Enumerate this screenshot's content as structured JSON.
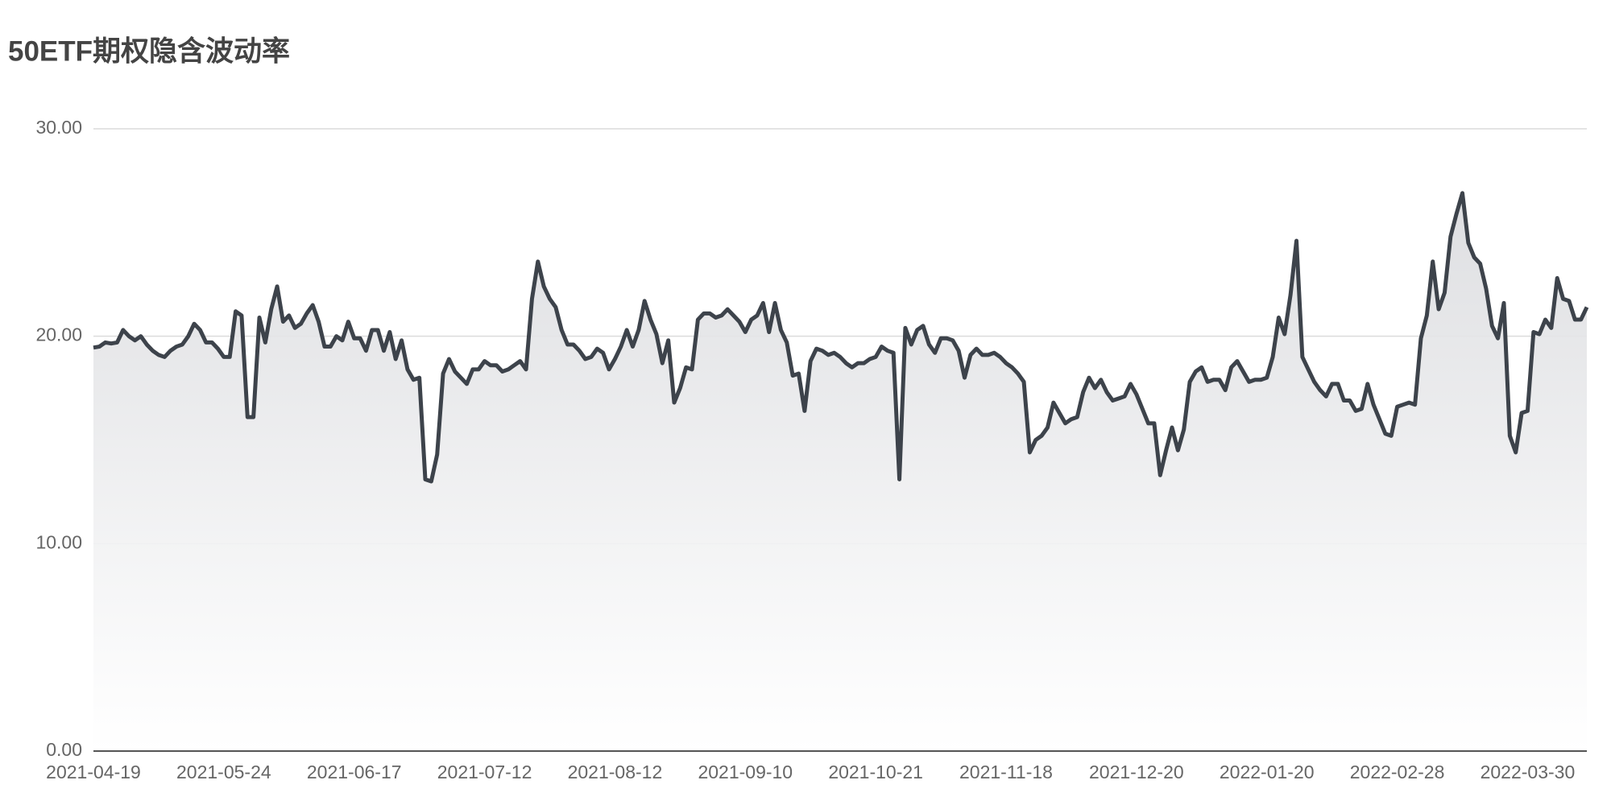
{
  "chart_data": {
    "type": "line",
    "title": "50ETF期权隐含波动率",
    "categories": [
      "2021-04-19",
      null,
      null,
      null,
      null,
      null,
      null,
      null,
      null,
      null,
      null,
      null,
      null,
      null,
      null,
      null,
      null,
      null,
      null,
      null,
      null,
      null,
      "2021-05-24",
      null,
      null,
      null,
      null,
      null,
      null,
      null,
      null,
      null,
      null,
      null,
      null,
      null,
      null,
      null,
      null,
      null,
      null,
      null,
      null,
      null,
      "2021-06-17",
      null,
      null,
      null,
      null,
      null,
      null,
      null,
      null,
      null,
      null,
      null,
      null,
      null,
      null,
      null,
      null,
      null,
      null,
      null,
      null,
      null,
      "2021-07-12",
      null,
      null,
      null,
      null,
      null,
      null,
      null,
      null,
      null,
      null,
      null,
      null,
      null,
      null,
      null,
      null,
      null,
      null,
      null,
      null,
      null,
      "2021-08-12",
      null,
      null,
      null,
      null,
      null,
      null,
      null,
      null,
      null,
      null,
      null,
      null,
      null,
      null,
      null,
      null,
      null,
      null,
      null,
      null,
      null,
      "2021-09-10",
      null,
      null,
      null,
      null,
      null,
      null,
      null,
      null,
      null,
      null,
      null,
      null,
      null,
      null,
      null,
      null,
      null,
      null,
      null,
      null,
      null,
      "2021-10-21",
      null,
      null,
      null,
      null,
      null,
      null,
      null,
      null,
      null,
      null,
      null,
      null,
      null,
      null,
      null,
      null,
      null,
      null,
      null,
      null,
      null,
      "2021-11-18",
      null,
      null,
      null,
      null,
      null,
      null,
      null,
      null,
      null,
      null,
      null,
      null,
      null,
      null,
      null,
      null,
      null,
      null,
      null,
      null,
      null,
      "2021-12-20",
      null,
      null,
      null,
      null,
      null,
      null,
      null,
      null,
      null,
      null,
      null,
      null,
      null,
      null,
      null,
      null,
      null,
      null,
      null,
      null,
      null,
      "2022-01-20",
      null,
      null,
      null,
      null,
      null,
      null,
      null,
      null,
      null,
      null,
      null,
      null,
      null,
      null,
      null,
      null,
      null,
      null,
      null,
      null,
      null,
      "2022-02-28",
      null,
      null,
      null,
      null,
      null,
      null,
      null,
      null,
      null,
      null,
      null,
      null,
      null,
      null,
      null,
      null,
      null,
      null,
      null,
      null,
      null,
      "2022-03-30",
      null,
      null,
      null,
      null,
      null,
      null,
      null,
      null,
      null,
      null
    ],
    "values": [
      19.45,
      19.5,
      19.7,
      19.65,
      19.7,
      20.3,
      20.0,
      19.8,
      20.0,
      19.6,
      19.3,
      19.1,
      19.0,
      19.3,
      19.5,
      19.6,
      20.0,
      20.6,
      20.3,
      19.7,
      19.7,
      19.4,
      19.0,
      19.0,
      21.2,
      21.0,
      16.1,
      16.1,
      20.9,
      19.7,
      21.3,
      22.4,
      20.7,
      21.0,
      20.4,
      20.6,
      21.1,
      21.5,
      20.7,
      19.5,
      19.5,
      20.0,
      19.8,
      20.7,
      19.9,
      19.9,
      19.3,
      20.3,
      20.3,
      19.3,
      20.2,
      18.9,
      19.8,
      18.4,
      17.9,
      18.0,
      13.1,
      13.0,
      14.3,
      18.2,
      18.9,
      18.3,
      18.0,
      17.7,
      18.4,
      18.4,
      18.8,
      18.6,
      18.6,
      18.3,
      18.4,
      18.6,
      18.8,
      18.4,
      21.8,
      23.6,
      22.4,
      21.8,
      21.4,
      20.3,
      19.6,
      19.6,
      19.3,
      18.9,
      19.0,
      19.4,
      19.2,
      18.4,
      18.9,
      19.5,
      20.3,
      19.5,
      20.3,
      21.7,
      20.8,
      20.1,
      18.7,
      19.8,
      16.8,
      17.5,
      18.5,
      18.4,
      20.8,
      21.1,
      21.1,
      20.9,
      21.0,
      21.3,
      21.0,
      20.7,
      20.2,
      20.8,
      21.0,
      21.6,
      20.2,
      21.6,
      20.3,
      19.7,
      18.1,
      18.2,
      16.4,
      18.8,
      19.4,
      19.3,
      19.1,
      19.2,
      19.0,
      18.7,
      18.5,
      18.7,
      18.7,
      18.9,
      19.0,
      19.5,
      19.3,
      19.2,
      13.1,
      20.4,
      19.6,
      20.3,
      20.5,
      19.6,
      19.2,
      19.9,
      19.9,
      19.8,
      19.3,
      18.0,
      19.1,
      19.4,
      19.1,
      19.1,
      19.2,
      19.0,
      18.7,
      18.5,
      18.2,
      17.8,
      14.4,
      15.0,
      15.2,
      15.6,
      16.8,
      16.3,
      15.8,
      16.0,
      16.1,
      17.3,
      18.0,
      17.5,
      17.9,
      17.3,
      16.9,
      17.0,
      17.1,
      17.7,
      17.2,
      16.5,
      15.8,
      15.8,
      13.3,
      14.5,
      15.6,
      14.5,
      15.5,
      17.8,
      18.3,
      18.5,
      17.8,
      17.9,
      17.9,
      17.4,
      18.5,
      18.8,
      18.3,
      17.8,
      17.9,
      17.9,
      18.0,
      19.0,
      20.9,
      20.1,
      22.0,
      24.6,
      19.0,
      18.4,
      17.8,
      17.4,
      17.1,
      17.7,
      17.7,
      16.9,
      16.9,
      16.4,
      16.5,
      17.7,
      16.7,
      16.0,
      15.3,
      15.2,
      16.6,
      16.7,
      16.8,
      16.7,
      19.9,
      21.0,
      23.6,
      21.3,
      22.1,
      24.8,
      25.9,
      26.9,
      24.5,
      23.8,
      23.5,
      22.3,
      20.5,
      19.9,
      21.6,
      15.2,
      14.4,
      16.3,
      16.4,
      20.2,
      20.1,
      20.8,
      20.4,
      22.8,
      21.8,
      21.7,
      20.8,
      20.8,
      21.4
    ],
    "color": "#3d434b",
    "ylim": [
      0,
      30
    ],
    "yticks": [
      {
        "value": 0,
        "label": "0.00"
      },
      {
        "value": 10,
        "label": "10.00"
      },
      {
        "value": 20,
        "label": "20.00"
      },
      {
        "value": 30,
        "label": "30.00"
      }
    ],
    "grid": true
  }
}
